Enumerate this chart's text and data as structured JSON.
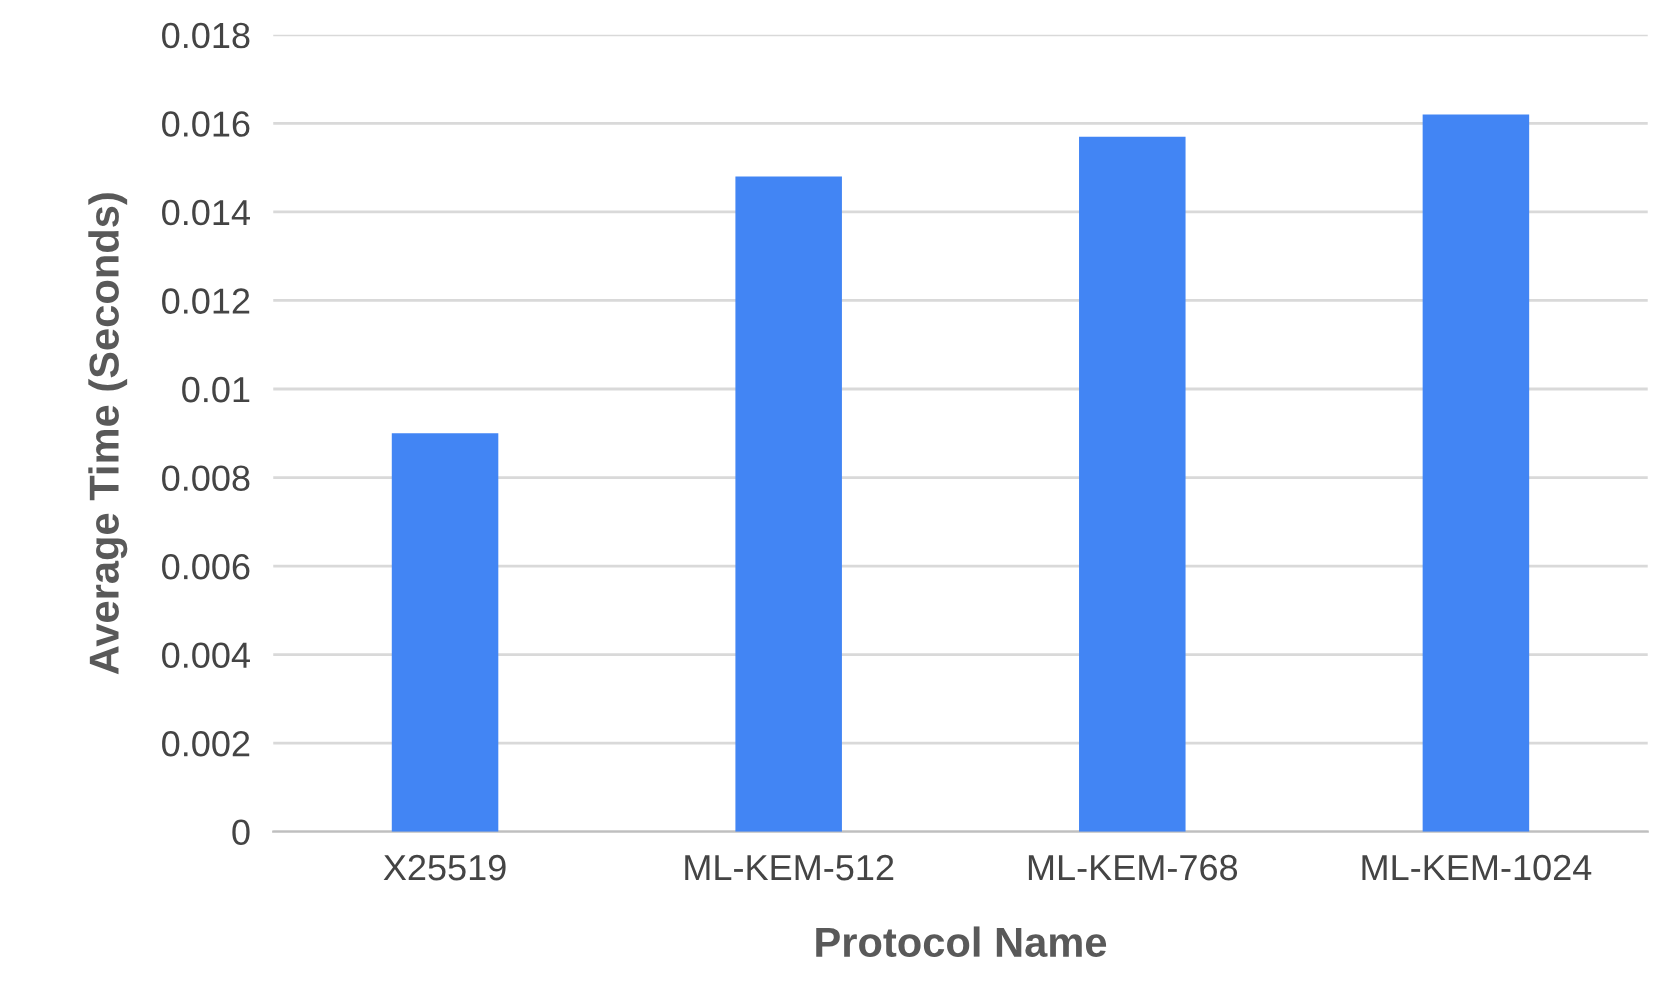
{
  "chart_data": {
    "type": "bar",
    "xlabel": "Protocol Name",
    "ylabel": "Average Time (Seconds)",
    "categories": [
      "X25519",
      "ML-KEM-512",
      "ML-KEM-768",
      "ML-KEM-1024"
    ],
    "values": [
      0.009,
      0.0148,
      0.0157,
      0.0162
    ],
    "color": "#4285f4",
    "ylim": [
      0,
      0.018
    ],
    "yticks": [
      0,
      0.002,
      0.004,
      0.006,
      0.008,
      0.01,
      0.012,
      0.014,
      0.016,
      0.018
    ],
    "grid": "y"
  }
}
